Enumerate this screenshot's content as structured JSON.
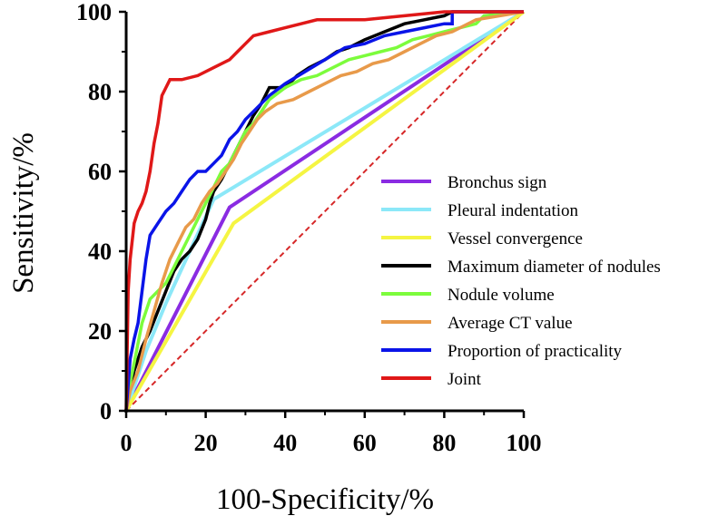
{
  "chart_data": {
    "type": "line",
    "title": "",
    "xlabel": "100-Specificity/%",
    "ylabel": "Sensitivity/%",
    "xlim": [
      0,
      100
    ],
    "ylim": [
      0,
      100
    ],
    "x_ticks": [
      "0",
      "20",
      "40",
      "60",
      "80",
      "100"
    ],
    "y_ticks": [
      "0",
      "20",
      "40",
      "60",
      "80",
      "100"
    ],
    "grid": false,
    "legend_position": "right",
    "reference_line": {
      "style": "dashed",
      "color": "#d62728",
      "x": [
        0,
        100
      ],
      "y": [
        0,
        100
      ]
    },
    "series": [
      {
        "name": "Bronchus sign",
        "color": "#8a2be2",
        "x": [
          0,
          26,
          100
        ],
        "y": [
          0,
          51,
          100
        ]
      },
      {
        "name": "Pleural indentation",
        "color": "#8ce8f8",
        "x": [
          0,
          5,
          10,
          16,
          22,
          100
        ],
        "y": [
          0,
          15,
          27,
          40,
          53,
          100
        ]
      },
      {
        "name": "Vessel convergence",
        "color": "#f5f542",
        "x": [
          0,
          27,
          100
        ],
        "y": [
          0,
          47,
          100
        ]
      },
      {
        "name": "Maximum diameter of nodules",
        "color": "#000000",
        "x": [
          0,
          1,
          2,
          4,
          6,
          8,
          10,
          12,
          14,
          16,
          18,
          20,
          21,
          22,
          24,
          26,
          28,
          30,
          32,
          34,
          36,
          40,
          43,
          46,
          50,
          53,
          56,
          60,
          65,
          70,
          75,
          80,
          82,
          100
        ],
        "y": [
          0,
          6,
          10,
          16,
          20,
          25,
          30,
          35,
          38,
          40,
          43,
          48,
          52,
          55,
          58,
          62,
          66,
          70,
          74,
          77,
          81,
          81,
          84,
          86,
          88,
          90,
          91,
          93,
          95,
          97,
          98,
          99,
          100,
          100
        ]
      },
      {
        "name": "Nodule volume",
        "color": "#7cfc3c",
        "x": [
          0,
          1,
          2,
          4,
          6,
          8,
          10,
          12,
          14,
          16,
          18,
          20,
          22,
          24,
          26,
          28,
          30,
          32,
          34,
          36,
          40,
          44,
          48,
          52,
          56,
          60,
          64,
          68,
          72,
          76,
          80,
          84,
          88,
          90,
          100
        ],
        "y": [
          0,
          7,
          12,
          22,
          28,
          30,
          32,
          36,
          40,
          44,
          48,
          52,
          56,
          60,
          62,
          66,
          70,
          72,
          75,
          78,
          81,
          83,
          84,
          86,
          88,
          89,
          90,
          91,
          93,
          94,
          95,
          96,
          97,
          99,
          100
        ]
      },
      {
        "name": "Average CT value",
        "color": "#e89a4a",
        "x": [
          0,
          1,
          3,
          5,
          7,
          9,
          11,
          13,
          15,
          17,
          19,
          21,
          23,
          25,
          27,
          29,
          31,
          33,
          35,
          38,
          42,
          46,
          50,
          54,
          58,
          62,
          66,
          70,
          74,
          78,
          82,
          86,
          88,
          100
        ],
        "y": [
          0,
          5,
          10,
          18,
          25,
          32,
          38,
          42,
          46,
          48,
          52,
          55,
          57,
          60,
          63,
          67,
          70,
          73,
          75,
          77,
          78,
          80,
          82,
          84,
          85,
          87,
          88,
          90,
          92,
          94,
          95,
          97,
          98,
          100
        ]
      },
      {
        "name": "Proportion of practicality",
        "color": "#0a14e8",
        "x": [
          0,
          1,
          2,
          3,
          4,
          5,
          6,
          8,
          10,
          12,
          14,
          16,
          18,
          20,
          22,
          24,
          26,
          28,
          30,
          32,
          34,
          36,
          40,
          45,
          50,
          55,
          60,
          65,
          70,
          75,
          80,
          82,
          82,
          100
        ],
        "y": [
          0,
          13,
          18,
          22,
          30,
          38,
          44,
          47,
          50,
          52,
          55,
          58,
          60,
          60,
          62,
          64,
          68,
          70,
          73,
          75,
          77,
          79,
          82,
          85,
          88,
          91,
          92,
          94,
          95,
          96,
          97,
          97,
          100,
          100
        ]
      },
      {
        "name": "Joint",
        "color": "#e01818",
        "x": [
          0,
          0.5,
          1,
          2,
          3,
          4,
          5,
          6,
          7,
          8,
          9,
          10,
          11,
          12,
          14,
          18,
          22,
          26,
          28,
          30,
          32,
          36,
          40,
          44,
          48,
          54,
          60,
          70,
          80,
          100
        ],
        "y": [
          0,
          30,
          38,
          47,
          50,
          52,
          55,
          60,
          67,
          72,
          79,
          81,
          83,
          83,
          83,
          84,
          86,
          88,
          90,
          92,
          94,
          95,
          96,
          97,
          98,
          98,
          98,
          99,
          100,
          100
        ]
      }
    ]
  }
}
